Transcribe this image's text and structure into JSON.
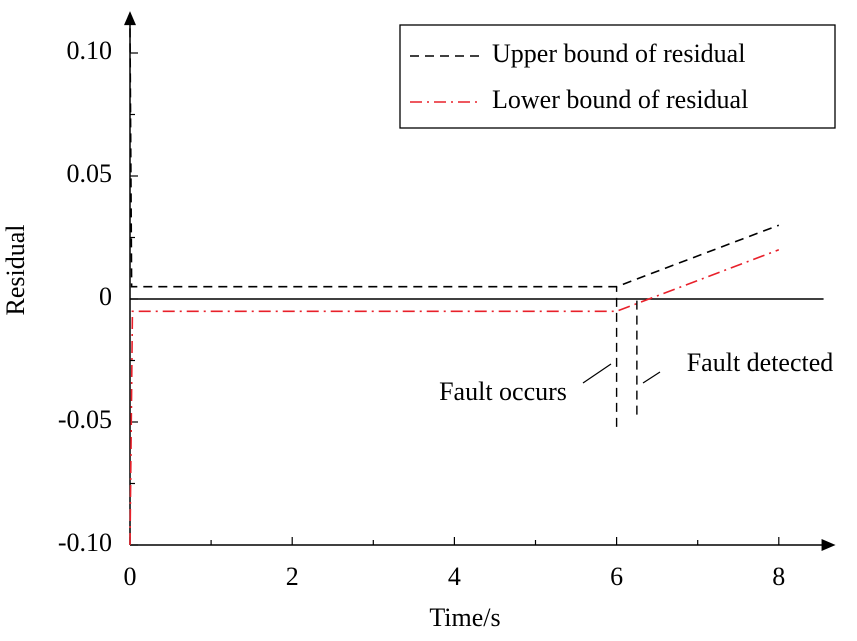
{
  "chart_data": {
    "type": "line",
    "x_label": "Time/s",
    "y_label": "Residual",
    "xlim": [
      0,
      8.7
    ],
    "ylim": [
      -0.1,
      0.117
    ],
    "xticks": [
      0,
      2,
      4,
      6,
      8
    ],
    "xminorticks": [
      1,
      3,
      5,
      7
    ],
    "yticks": [
      {
        "value": -0.1,
        "label": "-0.10"
      },
      -0.05,
      0,
      0.05,
      {
        "value": 0.1,
        "label": "0.10"
      }
    ],
    "yminorticks": [
      -0.075,
      -0.025,
      0.025,
      0.075
    ],
    "hlines": [
      0
    ],
    "legend": "upper-right",
    "series": [
      {
        "name": "Upper bound of residual",
        "color": "#000000",
        "dash": "dashed",
        "x": [
          0,
          0.02,
          6,
          8
        ],
        "values": [
          0.11,
          0.005,
          0.005,
          0.03
        ]
      },
      {
        "name": "Lower bound of residual",
        "color": "#e8202a",
        "dash": "dashdot",
        "x": [
          0,
          0.03,
          6,
          8
        ],
        "values": [
          -0.1,
          -0.005,
          -0.005,
          0.02
        ]
      }
    ],
    "vlines": [
      {
        "x": 6,
        "ymin": -0.052,
        "ymax": 0.005
      },
      {
        "x": 6.25,
        "ymin": -0.047,
        "ymax": 0
      }
    ],
    "annotations": [
      "Fault occurs",
      "Fault detected"
    ]
  }
}
